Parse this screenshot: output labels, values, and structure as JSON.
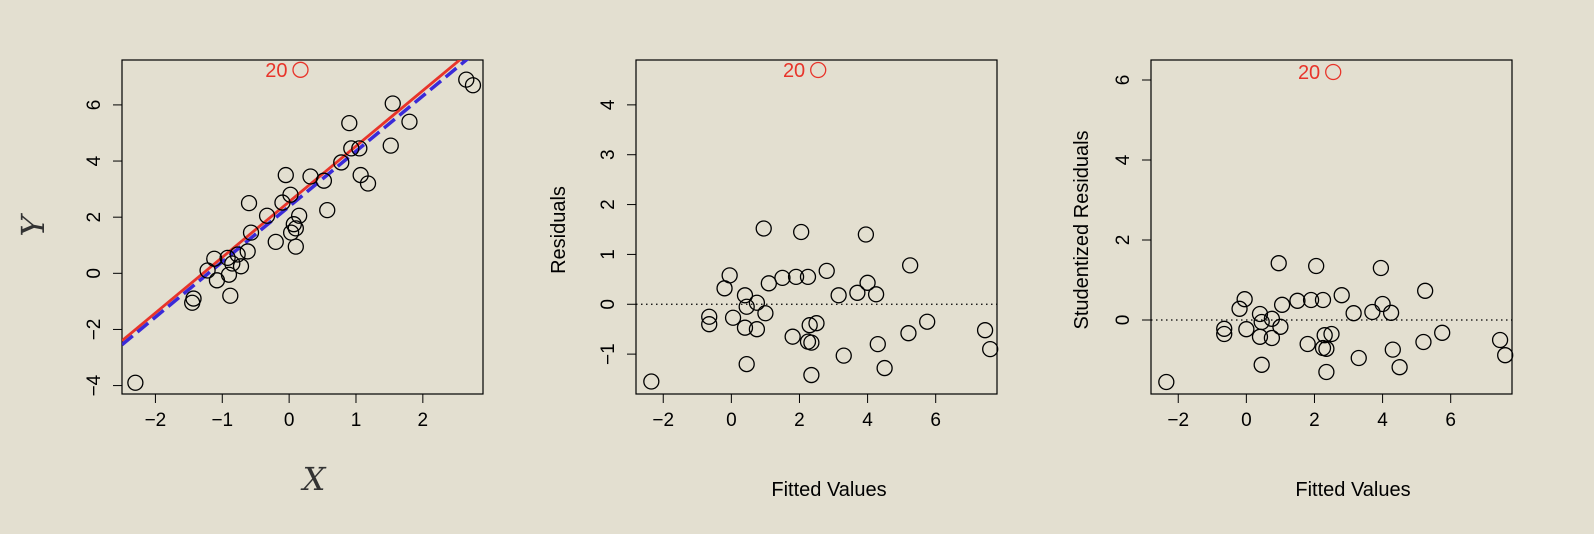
{
  "colors": {
    "background": "#e3dfd0",
    "points": "#000000",
    "highlight": "#e8342a",
    "ls_line": "#e8342a",
    "true_line": "#3a2ad8"
  },
  "chart_data": [
    {
      "type": "scatter",
      "title": "",
      "xlabel": "X",
      "ylabel": "Y",
      "xlim": [
        -2.5,
        2.9
      ],
      "ylim": [
        -4.3,
        7.6
      ],
      "xticks": [
        -2,
        -1,
        0,
        1,
        2
      ],
      "yticks": [
        -4,
        -2,
        0,
        2,
        4,
        6
      ],
      "points": [
        [
          -2.3,
          -3.9
        ],
        [
          -1.45,
          -1.05
        ],
        [
          -1.43,
          -0.9
        ],
        [
          -1.22,
          0.1
        ],
        [
          -1.12,
          0.52
        ],
        [
          -1.08,
          -0.25
        ],
        [
          -0.92,
          0.55
        ],
        [
          -0.9,
          -0.05
        ],
        [
          -0.88,
          -0.8
        ],
        [
          -0.85,
          0.35
        ],
        [
          -0.77,
          0.67
        ],
        [
          -0.72,
          0.25
        ],
        [
          -0.62,
          0.78
        ],
        [
          -0.6,
          2.5
        ],
        [
          -0.57,
          1.45
        ],
        [
          -0.33,
          2.05
        ],
        [
          -0.2,
          1.12
        ],
        [
          -0.1,
          2.52
        ],
        [
          -0.05,
          3.5
        ],
        [
          0.02,
          2.8
        ],
        [
          0.03,
          1.45
        ],
        [
          0.07,
          1.75
        ],
        [
          0.1,
          1.6
        ],
        [
          0.1,
          0.95
        ],
        [
          0.15,
          2.05
        ],
        [
          0.32,
          3.45
        ],
        [
          0.52,
          3.3
        ],
        [
          0.57,
          2.25
        ],
        [
          0.78,
          3.95
        ],
        [
          0.9,
          5.35
        ],
        [
          0.93,
          4.45
        ],
        [
          1.05,
          4.45
        ],
        [
          1.07,
          3.5
        ],
        [
          1.18,
          3.2
        ],
        [
          1.52,
          4.55
        ],
        [
          1.55,
          6.05
        ],
        [
          1.8,
          5.4
        ],
        [
          2.65,
          6.9
        ],
        [
          2.75,
          6.7
        ]
      ],
      "highlight_points": [
        {
          "label": "20",
          "x": 0.17,
          "y": 7.25
        }
      ],
      "lines": [
        {
          "style": "solid",
          "color": "#e8342a",
          "intercept": 2.55,
          "slope": 1.98
        },
        {
          "style": "dashed",
          "color": "#3a2ad8",
          "intercept": 2.38,
          "slope": 1.97
        }
      ],
      "grid": false
    },
    {
      "type": "scatter",
      "title": "",
      "xlabel": "Fitted Values",
      "ylabel": "Residuals",
      "xlim": [
        -2.8,
        7.8
      ],
      "ylim": [
        -1.8,
        4.9
      ],
      "xticks": [
        -2,
        0,
        2,
        4,
        6
      ],
      "yticks": [
        -1,
        0,
        1,
        2,
        3,
        4
      ],
      "reference_line": {
        "y": 0,
        "style": "dotted"
      },
      "points": [
        [
          -2.35,
          -1.55
        ],
        [
          -0.65,
          -0.25
        ],
        [
          -0.65,
          -0.4
        ],
        [
          -0.2,
          0.32
        ],
        [
          -0.05,
          0.58
        ],
        [
          0.05,
          -0.27
        ],
        [
          0.4,
          0.18
        ],
        [
          0.4,
          -0.47
        ],
        [
          0.45,
          -0.05
        ],
        [
          0.45,
          -1.2
        ],
        [
          0.75,
          0.03
        ],
        [
          0.75,
          -0.5
        ],
        [
          0.95,
          1.52
        ],
        [
          1.0,
          -0.18
        ],
        [
          1.1,
          0.42
        ],
        [
          1.5,
          0.53
        ],
        [
          1.8,
          -0.65
        ],
        [
          1.9,
          0.55
        ],
        [
          2.05,
          1.45
        ],
        [
          2.25,
          0.55
        ],
        [
          2.25,
          -0.75
        ],
        [
          2.3,
          -0.42
        ],
        [
          2.35,
          -0.77
        ],
        [
          2.35,
          -1.42
        ],
        [
          2.5,
          -0.38
        ],
        [
          2.8,
          0.67
        ],
        [
          3.15,
          0.18
        ],
        [
          3.3,
          -1.03
        ],
        [
          3.7,
          0.23
        ],
        [
          3.95,
          1.4
        ],
        [
          4.0,
          0.43
        ],
        [
          4.25,
          0.2
        ],
        [
          4.3,
          -0.8
        ],
        [
          4.5,
          -1.28
        ],
        [
          5.2,
          -0.58
        ],
        [
          5.25,
          0.78
        ],
        [
          5.75,
          -0.35
        ],
        [
          7.45,
          -0.52
        ],
        [
          7.6,
          -0.9
        ]
      ],
      "highlight_points": [
        {
          "label": "20",
          "x": 2.55,
          "y": 4.7
        }
      ],
      "grid": false
    },
    {
      "type": "scatter",
      "title": "",
      "xlabel": "Fitted Values",
      "ylabel": "Studentized Residuals",
      "xlim": [
        -2.8,
        7.8
      ],
      "ylim": [
        -1.85,
        6.5
      ],
      "xticks": [
        -2,
        0,
        2,
        4,
        6
      ],
      "yticks": [
        0,
        2,
        4,
        6
      ],
      "reference_line": {
        "y": 0,
        "style": "dotted"
      },
      "points": [
        [
          -2.35,
          -1.55
        ],
        [
          -0.65,
          -0.22
        ],
        [
          -0.65,
          -0.35
        ],
        [
          -0.2,
          0.28
        ],
        [
          -0.05,
          0.52
        ],
        [
          0.0,
          -0.23
        ],
        [
          0.4,
          0.15
        ],
        [
          0.4,
          -0.42
        ],
        [
          0.45,
          -0.05
        ],
        [
          0.45,
          -1.12
        ],
        [
          0.75,
          0.03
        ],
        [
          0.75,
          -0.45
        ],
        [
          0.95,
          1.42
        ],
        [
          1.0,
          -0.17
        ],
        [
          1.05,
          0.38
        ],
        [
          1.5,
          0.48
        ],
        [
          1.8,
          -0.6
        ],
        [
          1.9,
          0.5
        ],
        [
          2.05,
          1.35
        ],
        [
          2.25,
          0.5
        ],
        [
          2.25,
          -0.7
        ],
        [
          2.3,
          -0.38
        ],
        [
          2.35,
          -0.72
        ],
        [
          2.35,
          -1.3
        ],
        [
          2.5,
          -0.35
        ],
        [
          2.8,
          0.62
        ],
        [
          3.15,
          0.17
        ],
        [
          3.3,
          -0.95
        ],
        [
          3.7,
          0.2
        ],
        [
          3.95,
          1.3
        ],
        [
          4.0,
          0.4
        ],
        [
          4.25,
          0.18
        ],
        [
          4.3,
          -0.74
        ],
        [
          4.5,
          -1.18
        ],
        [
          5.2,
          -0.55
        ],
        [
          5.25,
          0.73
        ],
        [
          5.75,
          -0.32
        ],
        [
          7.45,
          -0.5
        ],
        [
          7.6,
          -0.88
        ]
      ],
      "highlight_points": [
        {
          "label": "20",
          "x": 2.55,
          "y": 6.2
        }
      ],
      "grid": false
    }
  ]
}
